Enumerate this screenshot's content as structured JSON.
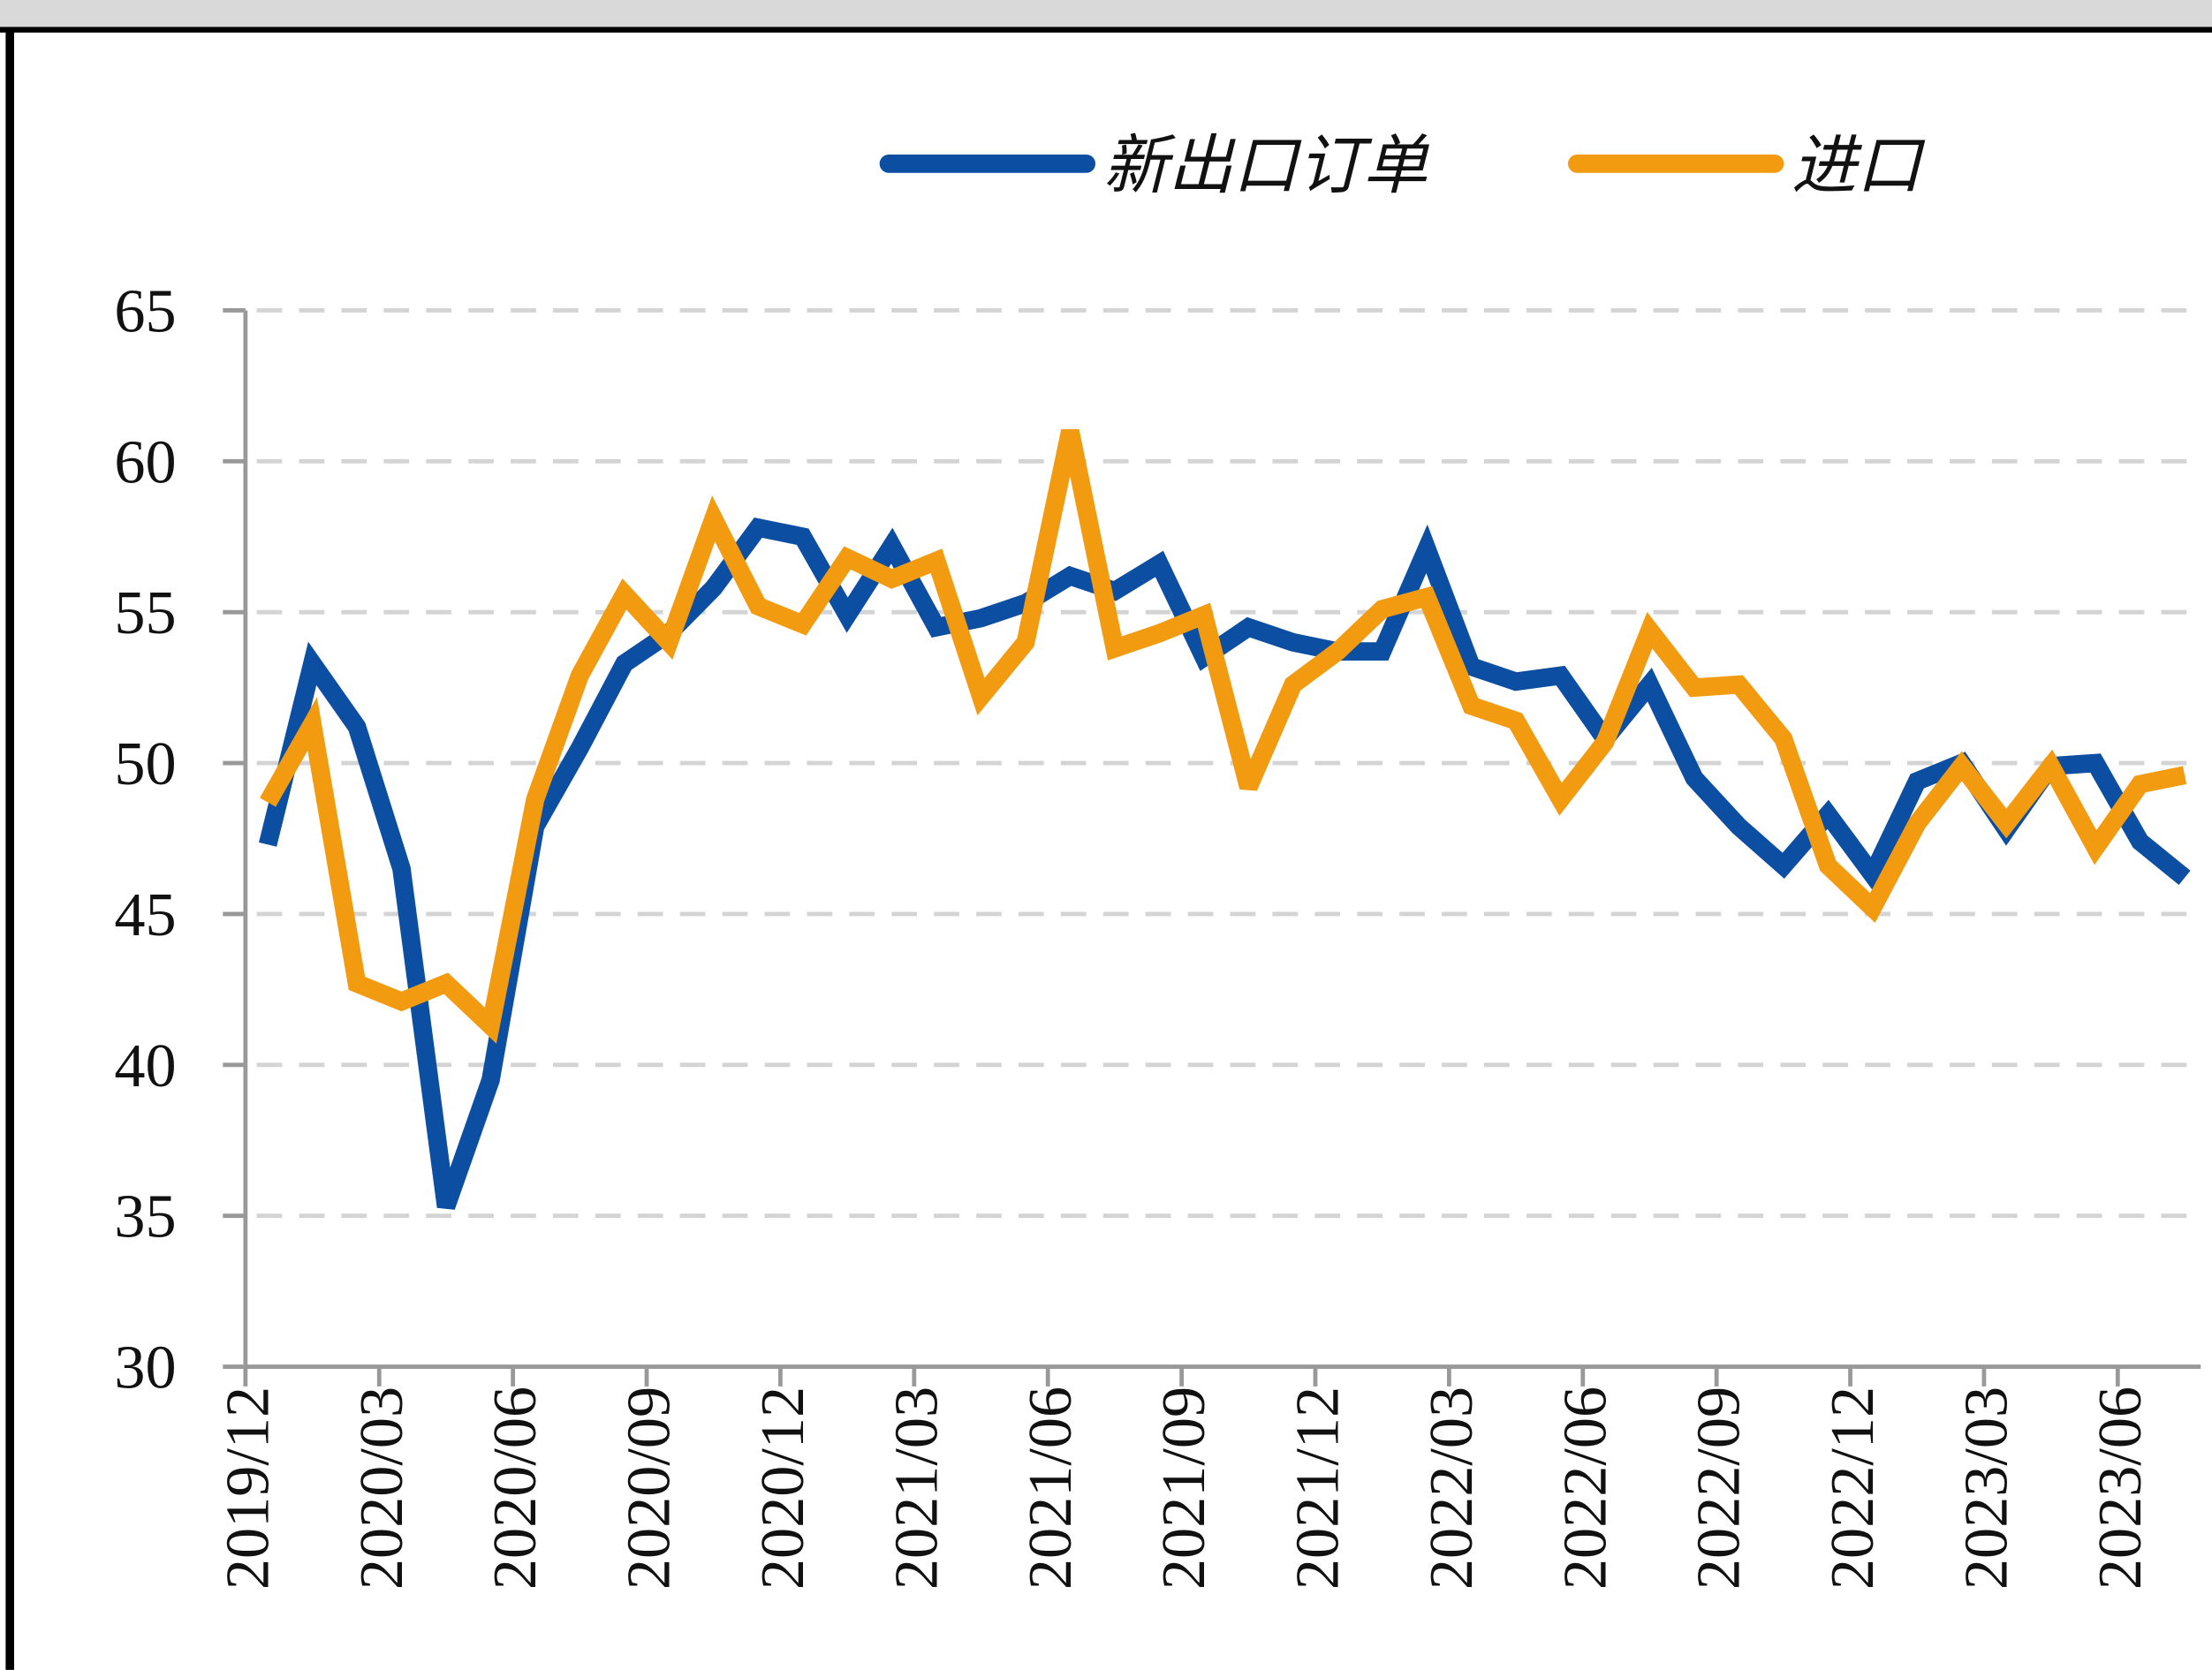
{
  "chart_data": {
    "type": "line",
    "categories": [
      "2019/12",
      null,
      null,
      "2020/03",
      null,
      null,
      "2020/06",
      null,
      null,
      "2020/09",
      null,
      null,
      "2020/12",
      null,
      null,
      "2021/03",
      null,
      null,
      "2021/06",
      null,
      null,
      "2021/09",
      null,
      null,
      "2021/12",
      null,
      null,
      "2022/03",
      null,
      null,
      "2022/06",
      null,
      null,
      "2022/09",
      null,
      null,
      "2022/12",
      null,
      null,
      "2023/03",
      null,
      null,
      "2023/06",
      null
    ],
    "series": [
      {
        "name": "新出口订单",
        "color": "#0b4ea2",
        "values": [
          47.3,
          53.3,
          51.2,
          46.5,
          35.3,
          39.5,
          47.9,
          50.5,
          53.3,
          54.3,
          55.8,
          57.8,
          57.5,
          54.9,
          57.2,
          54.5,
          54.8,
          55.3,
          56.2,
          55.7,
          56.6,
          53.5,
          54.5,
          54.0,
          53.7,
          53.7,
          57.1,
          53.2,
          52.7,
          52.9,
          50.8,
          52.6,
          49.5,
          47.9,
          46.6,
          48.3,
          46.3,
          49.4,
          50.0,
          47.8,
          49.9,
          50.0,
          47.4,
          46.2
        ]
      },
      {
        "name": "进口",
        "color": "#f29b11",
        "values": [
          48.7,
          51.3,
          42.7,
          42.1,
          42.7,
          41.3,
          48.8,
          52.9,
          55.6,
          54.0,
          58.1,
          55.2,
          54.6,
          56.8,
          56.1,
          56.7,
          52.2,
          54.0,
          61.0,
          53.8,
          54.3,
          54.9,
          49.2,
          52.6,
          53.7,
          55.1,
          55.5,
          51.9,
          51.4,
          48.8,
          50.7,
          54.4,
          52.5,
          52.6,
          50.8,
          46.6,
          45.2,
          48.0,
          49.9,
          48.0,
          49.9,
          47.2,
          49.3,
          49.6
        ]
      }
    ],
    "ylim": [
      30,
      65
    ],
    "yticks": [
      30,
      35,
      40,
      45,
      50,
      55,
      60,
      65
    ],
    "grid": true
  }
}
